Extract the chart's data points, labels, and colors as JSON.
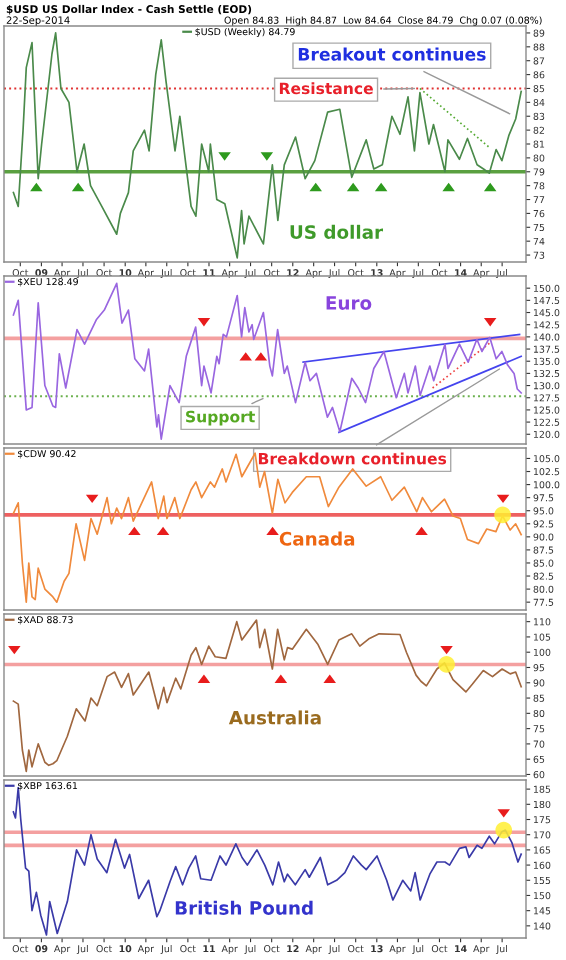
{
  "chart_data": [
    {
      "type": "line",
      "title": "$USD US Dollar Index - Cash Settle (EOD)",
      "subtitle": "22-Sep-2014",
      "annotations": [
        "Open 84.83  High 84.87  Low 84.64  Close 84.79  Chg 0.07 (0.08%)",
        {
          "text": "Breakout continues",
          "x": "2014-08-25",
          "y": 83
        },
        {
          "text": "Resistance",
          "x": "2013-07-08",
          "y": 85
        },
        "US dollar"
      ],
      "series": [
        {
          "name": "$USD (Weekly) 84.79",
          "color": "#4a8a4a",
          "x": [
            "2008-09-01",
            "2008-09-22",
            "2008-10-13",
            "2008-10-27",
            "2008-11-21",
            "2008-12-18",
            "2009-01-02",
            "2009-02-16",
            "2009-03-04",
            "2009-03-27",
            "2009-05-01",
            "2009-06-05",
            "2009-07-06",
            "2009-08-03",
            "2009-09-21",
            "2009-11-25",
            "2009-12-11",
            "2010-01-15",
            "2010-02-05",
            "2010-03-26",
            "2010-04-15",
            "2010-05-14",
            "2010-06-07",
            "2010-06-28",
            "2010-08-06",
            "2010-08-27",
            "2010-10-15",
            "2010-11-05",
            "2010-11-30",
            "2010-12-31",
            "2011-01-07",
            "2011-02-04",
            "2011-03-11",
            "2011-05-04",
            "2011-05-23",
            "2011-06-03",
            "2011-06-24",
            "2011-08-26",
            "2011-10-04",
            "2011-10-28",
            "2011-11-25",
            "2012-01-13",
            "2012-02-24",
            "2012-04-06",
            "2012-06-01",
            "2012-07-24",
            "2012-09-14",
            "2012-11-16",
            "2012-12-19",
            "2013-01-25",
            "2013-03-08",
            "2013-04-12",
            "2013-05-17",
            "2013-06-14",
            "2013-07-08",
            "2013-08-16",
            "2013-09-05",
            "2013-10-25",
            "2013-11-07",
            "2013-12-27",
            "2014-01-31",
            "2014-03-14",
            "2014-04-11",
            "2014-05-06",
            "2014-06-05",
            "2014-06-30",
            "2014-07-30",
            "2014-08-29",
            "2014-09-22"
          ],
          "values": [
            77.5,
            76.5,
            82,
            86.5,
            88.3,
            78.5,
            81,
            87.5,
            89,
            85,
            84,
            79,
            81,
            78,
            76.5,
            74.5,
            76,
            77.5,
            80.5,
            82,
            80.5,
            86,
            88.5,
            85.5,
            80.5,
            83,
            76.5,
            75.8,
            81,
            79,
            81,
            77,
            76.7,
            72.8,
            76.2,
            73.8,
            75.8,
            73.8,
            79.5,
            75.5,
            79.5,
            81.5,
            78.5,
            79.8,
            83.3,
            83.5,
            78.6,
            81.3,
            79.2,
            79.5,
            83,
            81.7,
            84.4,
            80.5,
            84.7,
            81,
            82.4,
            79,
            81.3,
            79.9,
            81.4,
            79.5,
            79.2,
            78.9,
            80.6,
            79.8,
            81.6,
            82.8,
            84.79
          ]
        },
        {
          "color": "#55aa33",
          "line_style": "dotted",
          "x": [
            "2013-07-08",
            "2014-05-10"
          ],
          "values": [
            85.0,
            80.7
          ]
        }
      ],
      "ref_lines": [
        {
          "axis": "y",
          "value": 79,
          "color": "#5aa040",
          "line_style": "solid"
        },
        {
          "axis": "y",
          "value": 85,
          "color": "#e03030",
          "line_style": "dotted"
        }
      ],
      "legend": "top left",
      "xlim": [
        "2008-07-22",
        "2014-10-13"
      ],
      "xticks": [
        {
          "value": "2008-10-01",
          "label": "Oct"
        },
        {
          "value": "2009-01-01",
          "label": "09"
        },
        {
          "value": "2009-04-01",
          "label": "Apr"
        },
        {
          "value": "2009-07-01",
          "label": "Jul"
        },
        {
          "value": "2009-10-01",
          "label": "Oct"
        },
        {
          "value": "2010-01-01",
          "label": "10"
        },
        {
          "value": "2010-04-01",
          "label": "Apr"
        },
        {
          "value": "2010-07-01",
          "label": "Jul"
        },
        {
          "value": "2010-10-01",
          "label": "Oct"
        },
        {
          "value": "2011-01-01",
          "label": "11"
        },
        {
          "value": "2011-04-01",
          "label": "Apr"
        },
        {
          "value": "2011-07-01",
          "label": "Jul"
        },
        {
          "value": "2011-10-01",
          "label": "Oct"
        },
        {
          "value": "2012-01-01",
          "label": "12"
        },
        {
          "value": "2012-04-01",
          "label": "Apr"
        },
        {
          "value": "2012-07-01",
          "label": "Jul"
        },
        {
          "value": "2012-10-01",
          "label": "Oct"
        },
        {
          "value": "2013-01-01",
          "label": "13"
        },
        {
          "value": "2013-04-01",
          "label": "Apr"
        },
        {
          "value": "2013-07-01",
          "label": "Jul"
        },
        {
          "value": "2013-10-01",
          "label": "Oct"
        },
        {
          "value": "2014-01-01",
          "label": "14"
        },
        {
          "value": "2014-04-01",
          "label": "Apr"
        },
        {
          "value": "2014-07-01",
          "label": "Jul"
        }
      ],
      "ylim": [
        72.5,
        89.5
      ],
      "yticks": [
        73,
        74,
        75,
        76,
        77,
        78,
        79,
        80,
        81,
        82,
        83,
        84,
        85,
        86,
        87,
        88,
        89
      ]
    },
    {
      "type": "line",
      "annotations": [
        "Euro",
        {
          "text": "Support",
          "x": "2011-09-15",
          "y": 127.8
        },
        {
          "text": "Breakdown continues",
          "x": "2014-07-10",
          "y": 134
        }
      ],
      "series": [
        {
          "name": "$XEU 128.49",
          "color": "#9966e0",
          "x": [
            "2008-09-01",
            "2008-09-22",
            "2008-10-27",
            "2008-11-21",
            "2008-12-18",
            "2009-01-16",
            "2009-02-20",
            "2009-03-04",
            "2009-03-20",
            "2009-04-17",
            "2009-06-05",
            "2009-07-08",
            "2009-08-28",
            "2009-10-02",
            "2009-11-25",
            "2009-12-18",
            "2010-01-15",
            "2010-02-12",
            "2010-03-26",
            "2010-04-13",
            "2010-05-19",
            "2010-05-26",
            "2010-06-07",
            "2010-07-15",
            "2010-08-24",
            "2010-09-24",
            "2010-11-04",
            "2010-11-30",
            "2010-12-10",
            "2011-01-10",
            "2011-02-04",
            "2011-02-14",
            "2011-03-04",
            "2011-03-18",
            "2011-05-04",
            "2011-05-23",
            "2011-06-06",
            "2011-06-24",
            "2011-07-08",
            "2011-07-15",
            "2011-08-26",
            "2011-09-23",
            "2011-10-04",
            "2011-10-27",
            "2011-11-25",
            "2011-12-08",
            "2012-01-13",
            "2012-02-24",
            "2012-03-16",
            "2012-04-13",
            "2012-05-31",
            "2012-06-22",
            "2012-07-24",
            "2012-09-14",
            "2012-10-12",
            "2012-11-13",
            "2012-12-19",
            "2013-02-01",
            "2013-03-27",
            "2013-05-01",
            "2013-05-17",
            "2013-06-18",
            "2013-07-09",
            "2013-08-20",
            "2013-09-06",
            "2013-10-25",
            "2013-11-07",
            "2013-12-27",
            "2014-02-03",
            "2014-03-13",
            "2014-04-04",
            "2014-05-08",
            "2014-06-05",
            "2014-06-30",
            "2014-07-25",
            "2014-08-22",
            "2014-09-05",
            "2014-09-22"
          ],
          "values": [
            144.5,
            147.5,
            125,
            125.5,
            147,
            130,
            125.8,
            125.5,
            136.5,
            129.5,
            141.5,
            138.5,
            143.5,
            145.5,
            151,
            142.8,
            145.5,
            135.5,
            133,
            137.5,
            121.5,
            124,
            119,
            130,
            126.5,
            136,
            142,
            130,
            134,
            128.5,
            136,
            134.5,
            140.5,
            140,
            148.5,
            140,
            146,
            141,
            142.5,
            139.5,
            145,
            134,
            132,
            141.5,
            132.5,
            134,
            126.5,
            134.8,
            131,
            132.5,
            123.5,
            125.5,
            120.5,
            131.5,
            129.5,
            126.5,
            133.5,
            137,
            127.5,
            132.5,
            128.5,
            134,
            128,
            134,
            131,
            138.5,
            133.5,
            138.5,
            134.8,
            139.5,
            137,
            139.9,
            135.5,
            137,
            134.2,
            132.5,
            129.3,
            128.49
          ]
        },
        {
          "color": "#4444ee",
          "x": [
            "2012-02-15",
            "2014-09-15"
          ],
          "values": [
            134.8,
            140.5
          ]
        },
        {
          "color": "#4444ee",
          "x": [
            "2012-07-20",
            "2014-09-22"
          ],
          "values": [
            120.4,
            136
          ]
        },
        {
          "color": "#ee4444",
          "line_style": "dotted",
          "x": [
            "2013-09-01",
            "2014-05-15"
          ],
          "values": [
            129.5,
            139
          ]
        }
      ],
      "ref_lines": [
        {
          "axis": "y",
          "value": 139.7,
          "color": "#f4a0a0",
          "line_style": "solid"
        },
        {
          "axis": "y",
          "value": 127.8,
          "color": "#6ab04c",
          "line_style": "dotted"
        }
      ],
      "legend": "top left",
      "tick_labels": "y",
      "xlim": [
        "2008-07-22",
        "2014-10-13"
      ],
      "ylim": [
        118,
        152.5
      ],
      "yticks": [
        {
          "value": 120,
          "label": "120.0"
        },
        122.5,
        {
          "value": 125,
          "label": "125.0"
        },
        127.5,
        {
          "value": 130,
          "label": "130.0"
        },
        132.5,
        {
          "value": 135,
          "label": "135.0"
        },
        137.5,
        {
          "value": 140,
          "label": "140.0"
        },
        142.5,
        {
          "value": 145,
          "label": "145.0"
        },
        147.5,
        {
          "value": 150,
          "label": "150.0"
        }
      ]
    },
    {
      "type": "line",
      "annotations": [
        "Canada"
      ],
      "series": [
        {
          "name": "$CDW 90.42",
          "color": "#f08a3c",
          "x": [
            "2008-09-01",
            "2008-09-22",
            "2008-10-10",
            "2008-10-27",
            "2008-11-07",
            "2008-11-21",
            "2008-12-05",
            "2008-12-18",
            "2009-01-16",
            "2009-02-20",
            "2009-03-09",
            "2009-04-10",
            "2009-05-01",
            "2009-06-01",
            "2009-07-08",
            "2009-08-05",
            "2009-09-01",
            "2009-10-14",
            "2009-11-02",
            "2009-11-25",
            "2009-12-16",
            "2010-01-15",
            "2010-02-05",
            "2010-04-26",
            "2010-05-25",
            "2010-06-18",
            "2010-07-02",
            "2010-08-05",
            "2010-08-27",
            "2010-10-15",
            "2010-11-05",
            "2010-11-30",
            "2011-01-07",
            "2011-01-25",
            "2011-02-28",
            "2011-03-16",
            "2011-04-29",
            "2011-05-24",
            "2011-07-21",
            "2011-08-10",
            "2011-08-31",
            "2011-10-04",
            "2011-10-28",
            "2011-11-28",
            "2011-12-30",
            "2012-02-29",
            "2012-04-27",
            "2012-06-04",
            "2012-07-20",
            "2012-09-18",
            "2012-11-16",
            "2013-01-18",
            "2013-03-08",
            "2013-05-01",
            "2013-06-24",
            "2013-07-19",
            "2013-08-27",
            "2013-10-23",
            "2013-11-29",
            "2013-12-31",
            "2014-01-31",
            "2014-03-20",
            "2014-04-25",
            "2014-06-04",
            "2014-07-03",
            "2014-08-05",
            "2014-08-29",
            "2014-09-22"
          ],
          "values": [
            94.5,
            96.5,
            85,
            77.5,
            85,
            78.5,
            78,
            84,
            80,
            78.5,
            77.5,
            81.5,
            83,
            92.5,
            85.5,
            93.5,
            90.5,
            97.5,
            92.5,
            95.5,
            93.5,
            97.5,
            93,
            100.5,
            93.5,
            97.8,
            93.5,
            97.5,
            93.5,
            99,
            100.5,
            97.5,
            100.5,
            99.5,
            103,
            100.5,
            105.8,
            101.5,
            106,
            99.5,
            102.5,
            94.5,
            101,
            96.5,
            98.5,
            101.5,
            101.5,
            95.8,
            99.5,
            103,
            99.7,
            101.5,
            97,
            99.5,
            94.8,
            97.5,
            94.8,
            97.2,
            94,
            93.5,
            89.5,
            88.7,
            91.5,
            91,
            94,
            91.3,
            92.5,
            90.42
          ]
        }
      ],
      "ref_lines": [
        {
          "axis": "y",
          "value": 94.2,
          "color": "#ee6060",
          "line_style": "solid"
        }
      ],
      "legend": "top left",
      "tick_labels": "y",
      "xlim": [
        "2008-07-22",
        "2014-10-13"
      ],
      "ylim": [
        76,
        107
      ],
      "yticks": [
        77.5,
        {
          "value": 80,
          "label": "80.0"
        },
        82.5,
        {
          "value": 85,
          "label": "85.0"
        },
        87.5,
        {
          "value": 90,
          "label": "90.0"
        },
        92.5,
        {
          "value": 95,
          "label": "95.0"
        },
        97.5,
        {
          "value": 100,
          "label": "100.0"
        },
        102.5,
        {
          "value": 105,
          "label": "105.0"
        }
      ]
    },
    {
      "type": "line",
      "annotations": [
        "Australia"
      ],
      "series": [
        {
          "name": "$XAD 88.73",
          "color": "#a0673f",
          "x": [
            "2008-09-01",
            "2008-09-22",
            "2008-10-10",
            "2008-10-27",
            "2008-11-07",
            "2008-11-21",
            "2008-12-18",
            "2009-01-16",
            "2009-02-02",
            "2009-02-20",
            "2009-03-09",
            "2009-04-24",
            "2009-06-02",
            "2009-07-10",
            "2009-08-05",
            "2009-09-01",
            "2009-10-14",
            "2009-11-16",
            "2009-12-16",
            "2010-01-15",
            "2010-02-05",
            "2010-04-14",
            "2010-05-25",
            "2010-06-18",
            "2010-07-02",
            "2010-08-09",
            "2010-08-31",
            "2010-10-15",
            "2010-11-05",
            "2010-11-30",
            "2010-12-31",
            "2011-01-28",
            "2011-03-16",
            "2011-05-02",
            "2011-05-24",
            "2011-07-27",
            "2011-08-10",
            "2011-09-01",
            "2011-10-04",
            "2011-10-27",
            "2011-11-25",
            "2011-12-09",
            "2011-12-30",
            "2012-02-29",
            "2012-04-20",
            "2012-06-01",
            "2012-07-20",
            "2012-09-14",
            "2012-10-19",
            "2012-11-30",
            "2013-01-11",
            "2013-04-12",
            "2013-05-10",
            "2013-06-21",
            "2013-07-12",
            "2013-08-05",
            "2013-09-20",
            "2013-10-23",
            "2013-11-29",
            "2014-01-24",
            "2014-02-21",
            "2014-04-10",
            "2014-05-20",
            "2014-07-01",
            "2014-08-05",
            "2014-08-29",
            "2014-09-22"
          ],
          "values": [
            84,
            83,
            68,
            61,
            68,
            62.5,
            70,
            64,
            63,
            63.5,
            64.5,
            72.5,
            81.5,
            77.5,
            85,
            82.5,
            92,
            93.5,
            88.5,
            93,
            86,
            93.5,
            81.5,
            88.5,
            83.5,
            91.5,
            88,
            99,
            101.5,
            96,
            102,
            98.5,
            98,
            110,
            104,
            110.5,
            101.5,
            107.5,
            94.5,
            107.5,
            97.5,
            101.5,
            101,
            107.5,
            102.5,
            96,
            104,
            106,
            102,
            104.5,
            106,
            105.8,
            100,
            92.5,
            90.5,
            89,
            94.5,
            96.5,
            91,
            87,
            89.5,
            94,
            92,
            94.5,
            92.9,
            93.5,
            88.73
          ]
        }
      ],
      "ref_lines": [
        {
          "axis": "y",
          "value": 96,
          "color": "#f4a0a0",
          "line_style": "solid"
        }
      ],
      "legend": "top left",
      "tick_labels": "y",
      "xlim": [
        "2008-07-22",
        "2014-10-13"
      ],
      "ylim": [
        59.5,
        112.5
      ],
      "yticks": [
        60,
        65,
        70,
        75,
        80,
        85,
        90,
        95,
        100,
        105,
        110
      ]
    },
    {
      "type": "line",
      "annotations": [
        "British Pound"
      ],
      "series": [
        {
          "name": "$XBP 163.61",
          "color": "#3a3aa8",
          "x": [
            "2008-09-01",
            "2008-09-10",
            "2008-09-22",
            "2008-10-03",
            "2008-10-24",
            "2008-11-07",
            "2008-11-21",
            "2008-12-10",
            "2008-12-29",
            "2009-01-23",
            "2009-02-06",
            "2009-03-11",
            "2009-04-24",
            "2009-06-03",
            "2009-07-08",
            "2009-08-05",
            "2009-09-01",
            "2009-10-13",
            "2009-11-20",
            "2009-12-29",
            "2010-01-20",
            "2010-03-01",
            "2010-04-13",
            "2010-05-19",
            "2010-06-01",
            "2010-07-15",
            "2010-08-09",
            "2010-09-08",
            "2010-10-05",
            "2010-11-04",
            "2010-11-26",
            "2011-01-10",
            "2011-02-18",
            "2011-03-16",
            "2011-04-28",
            "2011-05-25",
            "2011-06-17",
            "2011-07-29",
            "2011-09-01",
            "2011-10-06",
            "2011-10-31",
            "2011-11-25",
            "2011-12-09",
            "2012-01-12",
            "2012-02-24",
            "2012-03-13",
            "2012-04-30",
            "2012-06-01",
            "2012-07-10",
            "2012-08-15",
            "2012-09-21",
            "2012-10-26",
            "2012-11-16",
            "2013-01-02",
            "2013-02-13",
            "2013-03-12",
            "2013-04-24",
            "2013-05-29",
            "2013-06-17",
            "2013-07-09",
            "2013-08-20",
            "2013-09-20",
            "2013-10-25",
            "2013-11-14",
            "2013-12-27",
            "2014-01-24",
            "2014-02-07",
            "2014-03-14",
            "2014-04-04",
            "2014-05-06",
            "2014-05-29",
            "2014-06-30",
            "2014-07-15",
            "2014-08-12",
            "2014-09-08",
            "2014-09-22"
          ],
          "values": [
            177.5,
            175.5,
            185.5,
            175,
            159,
            158,
            145,
            151,
            143.5,
            137,
            148,
            137.5,
            148,
            165,
            160,
            170,
            162,
            157.5,
            168.5,
            159,
            163.5,
            149,
            155,
            143,
            145,
            154.5,
            159.5,
            153.5,
            159,
            163,
            155.5,
            155,
            163,
            160,
            167,
            162.5,
            160,
            165,
            160,
            153.5,
            161,
            154.5,
            157,
            153.5,
            158.5,
            156,
            162.5,
            153.5,
            155,
            157.5,
            163,
            160,
            158.5,
            163,
            155,
            148.5,
            155,
            151.5,
            157.5,
            148.5,
            157,
            161,
            161,
            160,
            165.5,
            166,
            162.5,
            166.5,
            165.5,
            169.5,
            167,
            171,
            171.5,
            167.5,
            161,
            163.61
          ]
        }
      ],
      "ref_lines": [
        {
          "axis": "y",
          "value": 170.8,
          "color": "#f4a0a0",
          "line_style": "solid"
        },
        {
          "axis": "y",
          "value": 166.5,
          "color": "#f4a0a0",
          "line_style": "solid"
        }
      ],
      "legend": "top left",
      "xlim": [
        "2008-07-22",
        "2014-10-13"
      ],
      "xticks": [
        {
          "value": "2008-10-01",
          "label": "Oct"
        },
        {
          "value": "2009-01-01",
          "label": "09"
        },
        {
          "value": "2009-04-01",
          "label": "Apr"
        },
        {
          "value": "2009-07-01",
          "label": "Jul"
        },
        {
          "value": "2009-10-01",
          "label": "Oct"
        },
        {
          "value": "2010-01-01",
          "label": "10"
        },
        {
          "value": "2010-04-01",
          "label": "Apr"
        },
        {
          "value": "2010-07-01",
          "label": "Jul"
        },
        {
          "value": "2010-10-01",
          "label": "Oct"
        },
        {
          "value": "2011-01-01",
          "label": "11"
        },
        {
          "value": "2011-04-01",
          "label": "Apr"
        },
        {
          "value": "2011-07-01",
          "label": "Jul"
        },
        {
          "value": "2011-10-01",
          "label": "Oct"
        },
        {
          "value": "2012-01-01",
          "label": "12"
        },
        {
          "value": "2012-04-01",
          "label": "Apr"
        },
        {
          "value": "2012-07-01",
          "label": "Jul"
        },
        {
          "value": "2012-10-01",
          "label": "Oct"
        },
        {
          "value": "2013-01-01",
          "label": "13"
        },
        {
          "value": "2013-04-01",
          "label": "Apr"
        },
        {
          "value": "2013-07-01",
          "label": "Jul"
        },
        {
          "value": "2013-10-01",
          "label": "Oct"
        },
        {
          "value": "2014-01-01",
          "label": "14"
        },
        {
          "value": "2014-04-01",
          "label": "Apr"
        },
        {
          "value": "2014-07-01",
          "label": "Jul"
        }
      ],
      "ylim": [
        136,
        188
      ],
      "yticks": [
        140,
        145,
        150,
        155,
        160,
        165,
        170,
        175,
        180,
        185
      ]
    }
  ]
}
